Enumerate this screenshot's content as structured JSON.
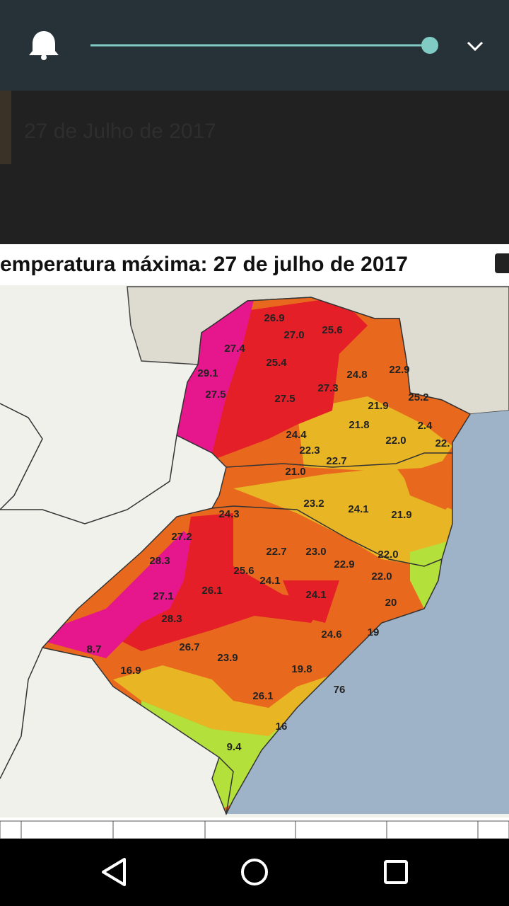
{
  "post": {
    "caption": "27 de Julho de 2017"
  },
  "map": {
    "title": "emperatura máxima: 27 de julho de 2017",
    "labels": [
      "26.9",
      "27.0",
      "25.6",
      "27.4",
      "25.4",
      "24.8",
      "22.9",
      "29.1",
      "27.5",
      "27.5",
      "27.3",
      "21.9",
      "25.2",
      "21.8",
      "2.4",
      "24.4",
      "22.0",
      "22.",
      "22.3",
      "22.7",
      "21.0",
      "23.2",
      "24.1",
      "21.9",
      "24.3",
      "27.2",
      "22.7",
      "23.0",
      "22.0",
      "28.3",
      "22.9",
      "25.6",
      "24.1",
      "22.0",
      "27.1",
      "26.1",
      "24.1",
      "20",
      "28.3",
      "24.6",
      "19",
      "8.7",
      "26.7",
      "23.9",
      "16.9",
      "19.8",
      "76",
      "26.1",
      "16",
      "9.4"
    ]
  }
}
